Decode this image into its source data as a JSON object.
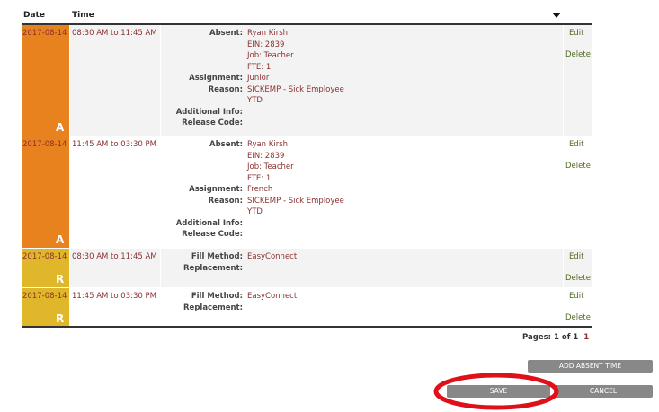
{
  "header": {
    "date": "Date",
    "time": "Time"
  },
  "rows": [
    {
      "letter": "A",
      "date": "2017-08-14",
      "time": "08:30 AM to 11:45 AM",
      "fields": [
        {
          "label": "Absent:",
          "lines": [
            "Ryan Kirsh",
            "EIN: 2839",
            "Job: Teacher",
            "FTE: 1"
          ]
        },
        {
          "label": "Assignment:",
          "lines": [
            "Junior"
          ]
        },
        {
          "label": "Reason:",
          "lines": [
            "SICKEMP - Sick Employee",
            "YTD"
          ]
        },
        {
          "label": "Additional Info:"
        },
        {
          "label": "Release Code:"
        }
      ],
      "edit": "Edit",
      "delete": "Delete"
    },
    {
      "letter": "A",
      "date": "2017-08-14",
      "time": "11:45 AM to 03:30 PM",
      "fields": [
        {
          "label": "Absent:",
          "lines": [
            "Ryan Kirsh",
            "EIN: 2839",
            "Job: Teacher",
            "FTE: 1"
          ]
        },
        {
          "label": "Assignment:",
          "lines": [
            "French"
          ]
        },
        {
          "label": "Reason:",
          "lines": [
            "SICKEMP - Sick Employee",
            "YTD"
          ]
        },
        {
          "label": "Additional Info:"
        },
        {
          "label": "Release Code:"
        }
      ],
      "edit": "Edit",
      "delete": "Delete"
    },
    {
      "letter": "R",
      "date": "2017-08-14",
      "time": "08:30 AM to 11:45 AM",
      "fields": [
        {
          "label": "Fill Method:",
          "lines": [
            "EasyConnect"
          ]
        },
        {
          "label": "Replacement:"
        }
      ],
      "edit": "Edit",
      "delete": "Delete"
    },
    {
      "letter": "R",
      "date": "2017-08-14",
      "time": "11:45 AM to 03:30 PM",
      "fields": [
        {
          "label": "Fill Method:",
          "lines": [
            "EasyConnect"
          ]
        },
        {
          "label": "Replacement:"
        }
      ],
      "edit": "Edit",
      "delete": "Delete"
    }
  ],
  "pagination": {
    "label": "Pages:",
    "summary": "1 of 1",
    "page": "1"
  },
  "buttons": {
    "add": "ADD ABSENT TIME",
    "save": "SAVE",
    "cancel": "CANCEL"
  }
}
